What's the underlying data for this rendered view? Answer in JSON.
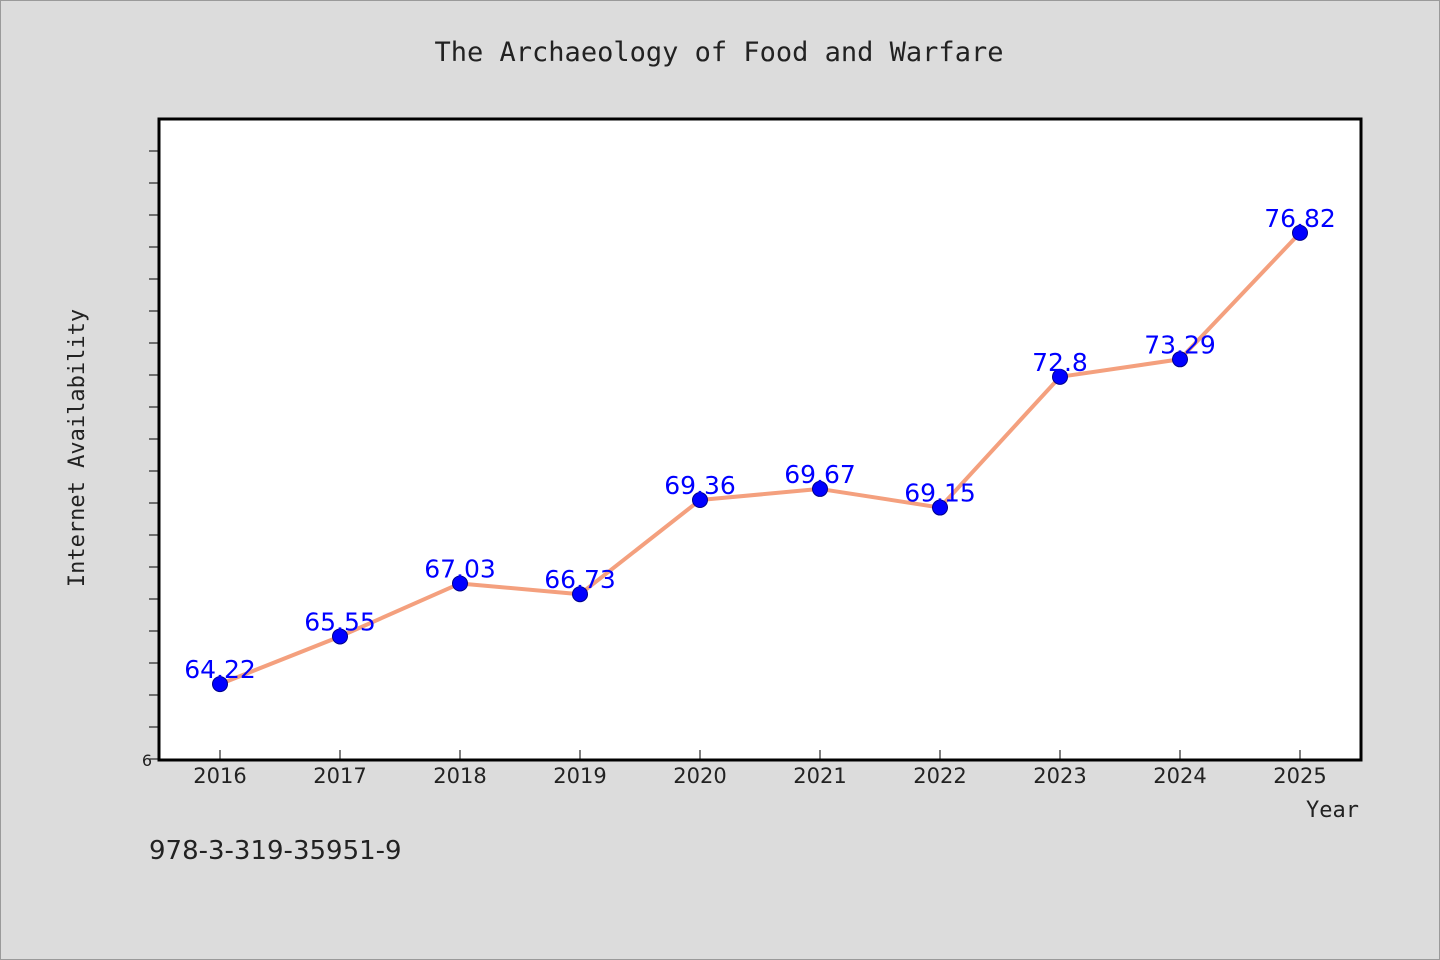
{
  "chart_data": {
    "type": "line",
    "title": "The Archaeology of Food and Warfare",
    "xlabel": "Year",
    "ylabel": "Internet Availability",
    "categories": [
      "2016",
      "2017",
      "2018",
      "2019",
      "2020",
      "2021",
      "2022",
      "2023",
      "2024",
      "2025"
    ],
    "series": [
      {
        "values": [
          64.22,
          65.55,
          67.03,
          66.73,
          69.36,
          69.67,
          69.15,
          72.8,
          73.29,
          76.82
        ],
        "labels": [
          "64.22",
          "65.55",
          "67.03",
          "66.73",
          "69.36",
          "69.67",
          "69.15",
          "72.8",
          "73.29",
          "76.82"
        ]
      }
    ],
    "y_tick_labels": [
      "6"
    ],
    "ylim": [
      62.1,
      80.0
    ],
    "grid": false,
    "legend": "none",
    "colors": {
      "line": "#f4a07e",
      "marker": "#0000ff",
      "data_label": "#0000ff",
      "plot_background": "#ffffff",
      "figure_background": "#dcdcdc"
    }
  },
  "footer": {
    "isbn": "978-3-319-35951-9"
  }
}
